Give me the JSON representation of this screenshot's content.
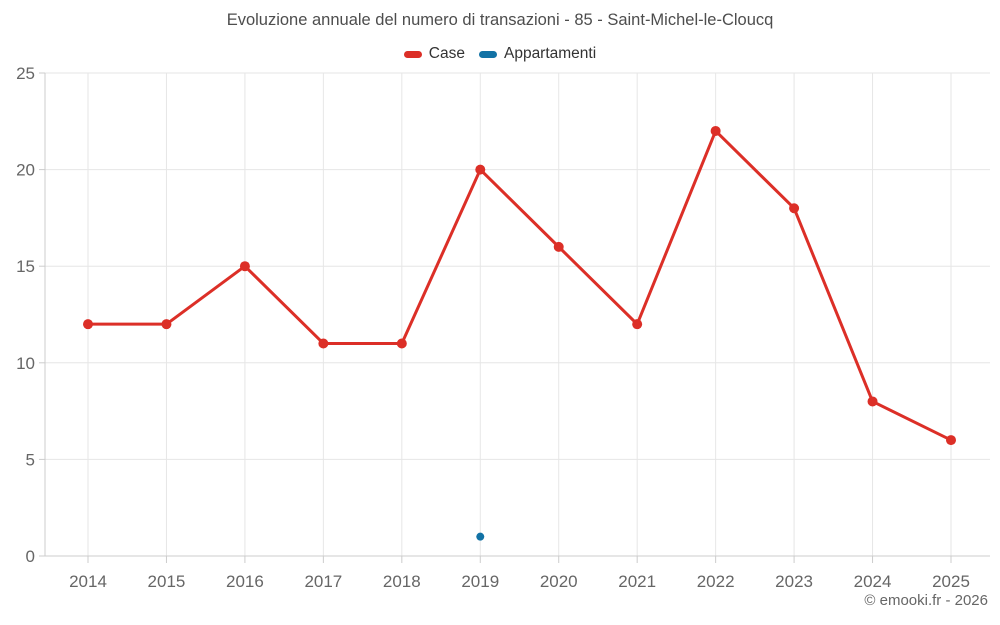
{
  "title": "Evoluzione annuale del numero di transazioni - 85 - Saint-Michel-le-Cloucq",
  "legend": [
    {
      "label": "Case",
      "color": "#dc2f27"
    },
    {
      "label": "Appartamenti",
      "color": "#1272a5"
    }
  ],
  "credit": "© emooki.fr - 2026",
  "colors": {
    "grid": "#e6e6e6",
    "axis": "#cccccc",
    "tick": "#cccccc",
    "tick_label": "#666666"
  },
  "chart_data": {
    "type": "line",
    "title": "Evoluzione annuale del numero di transazioni - 85 - Saint-Michel-le-Cloucq",
    "categories": [
      "2014",
      "2015",
      "2016",
      "2017",
      "2018",
      "2019",
      "2020",
      "2021",
      "2022",
      "2023",
      "2024",
      "2025"
    ],
    "series": [
      {
        "name": "Case",
        "color": "#dc2f27",
        "values": [
          12,
          12,
          15,
          11,
          11,
          20,
          16,
          12,
          22,
          18,
          8,
          6
        ]
      },
      {
        "name": "Appartamenti",
        "color": "#1272a5",
        "values": [
          null,
          null,
          null,
          null,
          null,
          1,
          null,
          null,
          null,
          null,
          null,
          null
        ]
      }
    ],
    "xlabel": "",
    "ylabel": "",
    "ylim": [
      0,
      25
    ],
    "yticks": [
      0,
      5,
      10,
      15,
      20,
      25
    ],
    "grid": true,
    "legend_position": "top"
  }
}
